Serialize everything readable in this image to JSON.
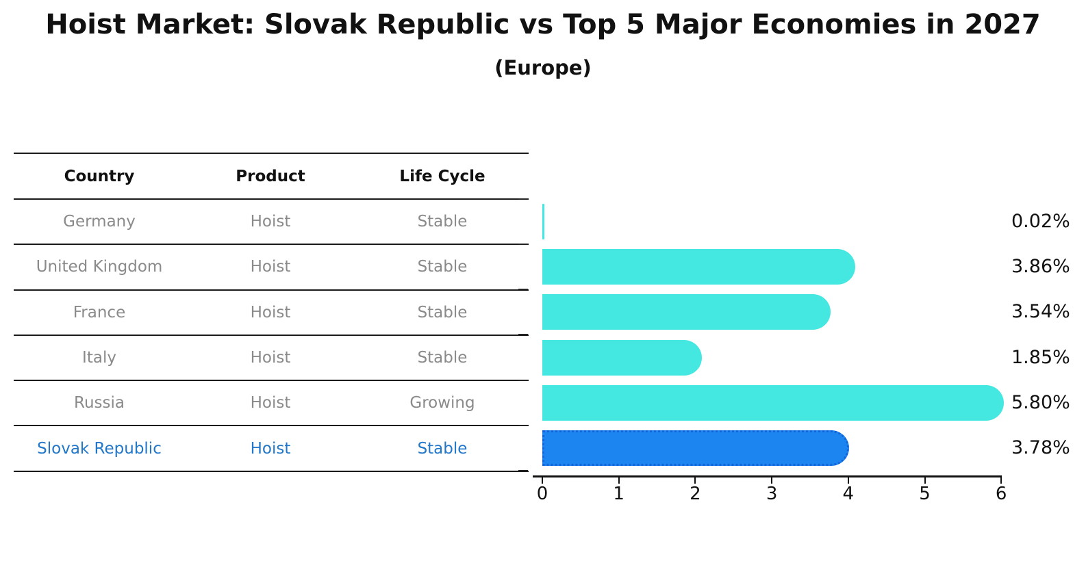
{
  "chart_data": {
    "type": "bar",
    "orientation": "horizontal",
    "title": "Hoist Market: Slovak Republic vs Top 5 Major Economies in 2027",
    "subtitle": "(Europe)",
    "table_headers": [
      "Country",
      "Product",
      "Life Cycle"
    ],
    "x_axis": {
      "min": 0,
      "max": 6,
      "ticks": [
        "0",
        "1",
        "2",
        "3",
        "4",
        "5",
        "6"
      ]
    },
    "rows": [
      {
        "country": "Germany",
        "product": "Hoist",
        "life_cycle": "Stable",
        "value": 0.02,
        "value_label": "0.02%",
        "highlight": false
      },
      {
        "country": "United Kingdom",
        "product": "Hoist",
        "life_cycle": "Stable",
        "value": 3.86,
        "value_label": "3.86%",
        "highlight": false
      },
      {
        "country": "France",
        "product": "Hoist",
        "life_cycle": "Stable",
        "value": 3.54,
        "value_label": "3.54%",
        "highlight": false
      },
      {
        "country": "Italy",
        "product": "Hoist",
        "life_cycle": "Stable",
        "value": 1.85,
        "value_label": "1.85%",
        "highlight": false
      },
      {
        "country": "Russia",
        "product": "Hoist",
        "life_cycle": "Growing",
        "value": 5.8,
        "value_label": "5.80%",
        "highlight": false
      },
      {
        "country": "Slovak Republic",
        "product": "Hoist",
        "life_cycle": "Stable",
        "value": 3.78,
        "value_label": "3.78%",
        "highlight": true
      }
    ],
    "colors": {
      "bar": "#45e7e1",
      "highlight_bar": "#1c85f0",
      "highlight_border": "#1464d8",
      "highlight_text": "#2277c8",
      "row_text": "#8a8a8a",
      "header_text": "#111111",
      "axis": "#111111"
    }
  }
}
